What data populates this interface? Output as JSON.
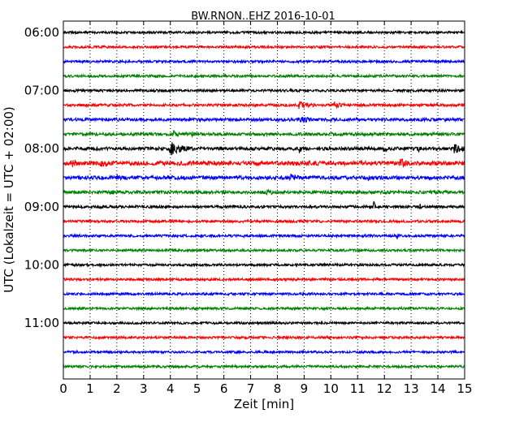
{
  "chart_data": {
    "type": "line",
    "title": "BW.RNON..EHZ 2016-10-01",
    "xlabel": "Zeit  [min]",
    "ylabel": "UTC (Lokalzeit = UTC + 02:00)",
    "xlim": [
      0,
      15
    ],
    "x_ticks": [
      "0",
      "1",
      "2",
      "3",
      "4",
      "5",
      "6",
      "7",
      "8",
      "9",
      "10",
      "11",
      "12",
      "13",
      "14",
      "15"
    ],
    "y_ticks": [
      "06:00",
      "07:00",
      "08:00",
      "09:00",
      "10:00",
      "11:00"
    ],
    "grid": "vertical-dotted",
    "trace_colors": [
      "#000000",
      "#ff0000",
      "#0000ff",
      "#008000"
    ],
    "traces": [
      {
        "start": "06:00",
        "amp": 1.4,
        "events": []
      },
      {
        "start": "06:15",
        "amp": 1.4,
        "events": []
      },
      {
        "start": "06:30",
        "amp": 1.5,
        "events": []
      },
      {
        "start": "06:45",
        "amp": 1.5,
        "events": []
      },
      {
        "start": "07:00",
        "amp": 1.5,
        "events": []
      },
      {
        "start": "07:15",
        "amp": 1.6,
        "events": [
          {
            "t": 8.8,
            "amp": 5,
            "dur": 0.6
          },
          {
            "t": 10.1,
            "amp": 4,
            "dur": 0.5
          }
        ]
      },
      {
        "start": "07:30",
        "amp": 1.8,
        "events": [
          {
            "t": 8.8,
            "amp": 5,
            "dur": 0.6
          },
          {
            "t": 10.9,
            "amp": 4,
            "dur": 0.2
          }
        ]
      },
      {
        "start": "07:45",
        "amp": 1.8,
        "events": [
          {
            "t": 4.1,
            "amp": 5,
            "dur": 0.3
          },
          {
            "t": 4.8,
            "amp": 4,
            "dur": 0.2
          }
        ]
      },
      {
        "start": "08:00",
        "amp": 2.0,
        "events": [
          {
            "t": 4.0,
            "amp": 9,
            "dur": 0.5
          },
          {
            "t": 8.85,
            "amp": 11,
            "dur": 0.05
          },
          {
            "t": 12.0,
            "amp": 6,
            "dur": 0.2
          },
          {
            "t": 13.2,
            "amp": 6,
            "dur": 0.2
          },
          {
            "t": 14.6,
            "amp": 7,
            "dur": 0.4
          }
        ]
      },
      {
        "start": "08:15",
        "amp": 2.6,
        "events": [
          {
            "t": 0.3,
            "amp": 6,
            "dur": 0.5
          },
          {
            "t": 1.4,
            "amp": 6,
            "dur": 0.4
          },
          {
            "t": 12.6,
            "amp": 6,
            "dur": 0.4
          }
        ]
      },
      {
        "start": "08:30",
        "amp": 2.2,
        "events": [
          {
            "t": 2.0,
            "amp": 5,
            "dur": 0.4
          },
          {
            "t": 8.5,
            "amp": 5,
            "dur": 0.4
          },
          {
            "t": 11.4,
            "amp": 5,
            "dur": 0.2
          }
        ]
      },
      {
        "start": "08:45",
        "amp": 1.8,
        "events": [
          {
            "t": 1.8,
            "amp": 4,
            "dur": 0.4
          },
          {
            "t": 7.6,
            "amp": 4,
            "dur": 0.5
          }
        ]
      },
      {
        "start": "09:00",
        "amp": 1.6,
        "events": [
          {
            "t": 11.6,
            "amp": 10,
            "dur": 0.05
          },
          {
            "t": 13.35,
            "amp": 9,
            "dur": 0.05
          }
        ]
      },
      {
        "start": "09:15",
        "amp": 1.5,
        "events": []
      },
      {
        "start": "09:30",
        "amp": 1.5,
        "events": [
          {
            "t": 12.45,
            "amp": 5,
            "dur": 0.15
          }
        ]
      },
      {
        "start": "09:45",
        "amp": 1.4,
        "events": []
      },
      {
        "start": "10:00",
        "amp": 1.4,
        "events": []
      },
      {
        "start": "10:15",
        "amp": 1.4,
        "events": []
      },
      {
        "start": "10:30",
        "amp": 1.4,
        "events": []
      },
      {
        "start": "10:45",
        "amp": 1.4,
        "events": []
      },
      {
        "start": "11:00",
        "amp": 1.4,
        "events": []
      },
      {
        "start": "11:15",
        "amp": 1.4,
        "events": []
      },
      {
        "start": "11:30",
        "amp": 1.4,
        "events": []
      },
      {
        "start": "11:45",
        "amp": 1.4,
        "events": []
      }
    ]
  }
}
